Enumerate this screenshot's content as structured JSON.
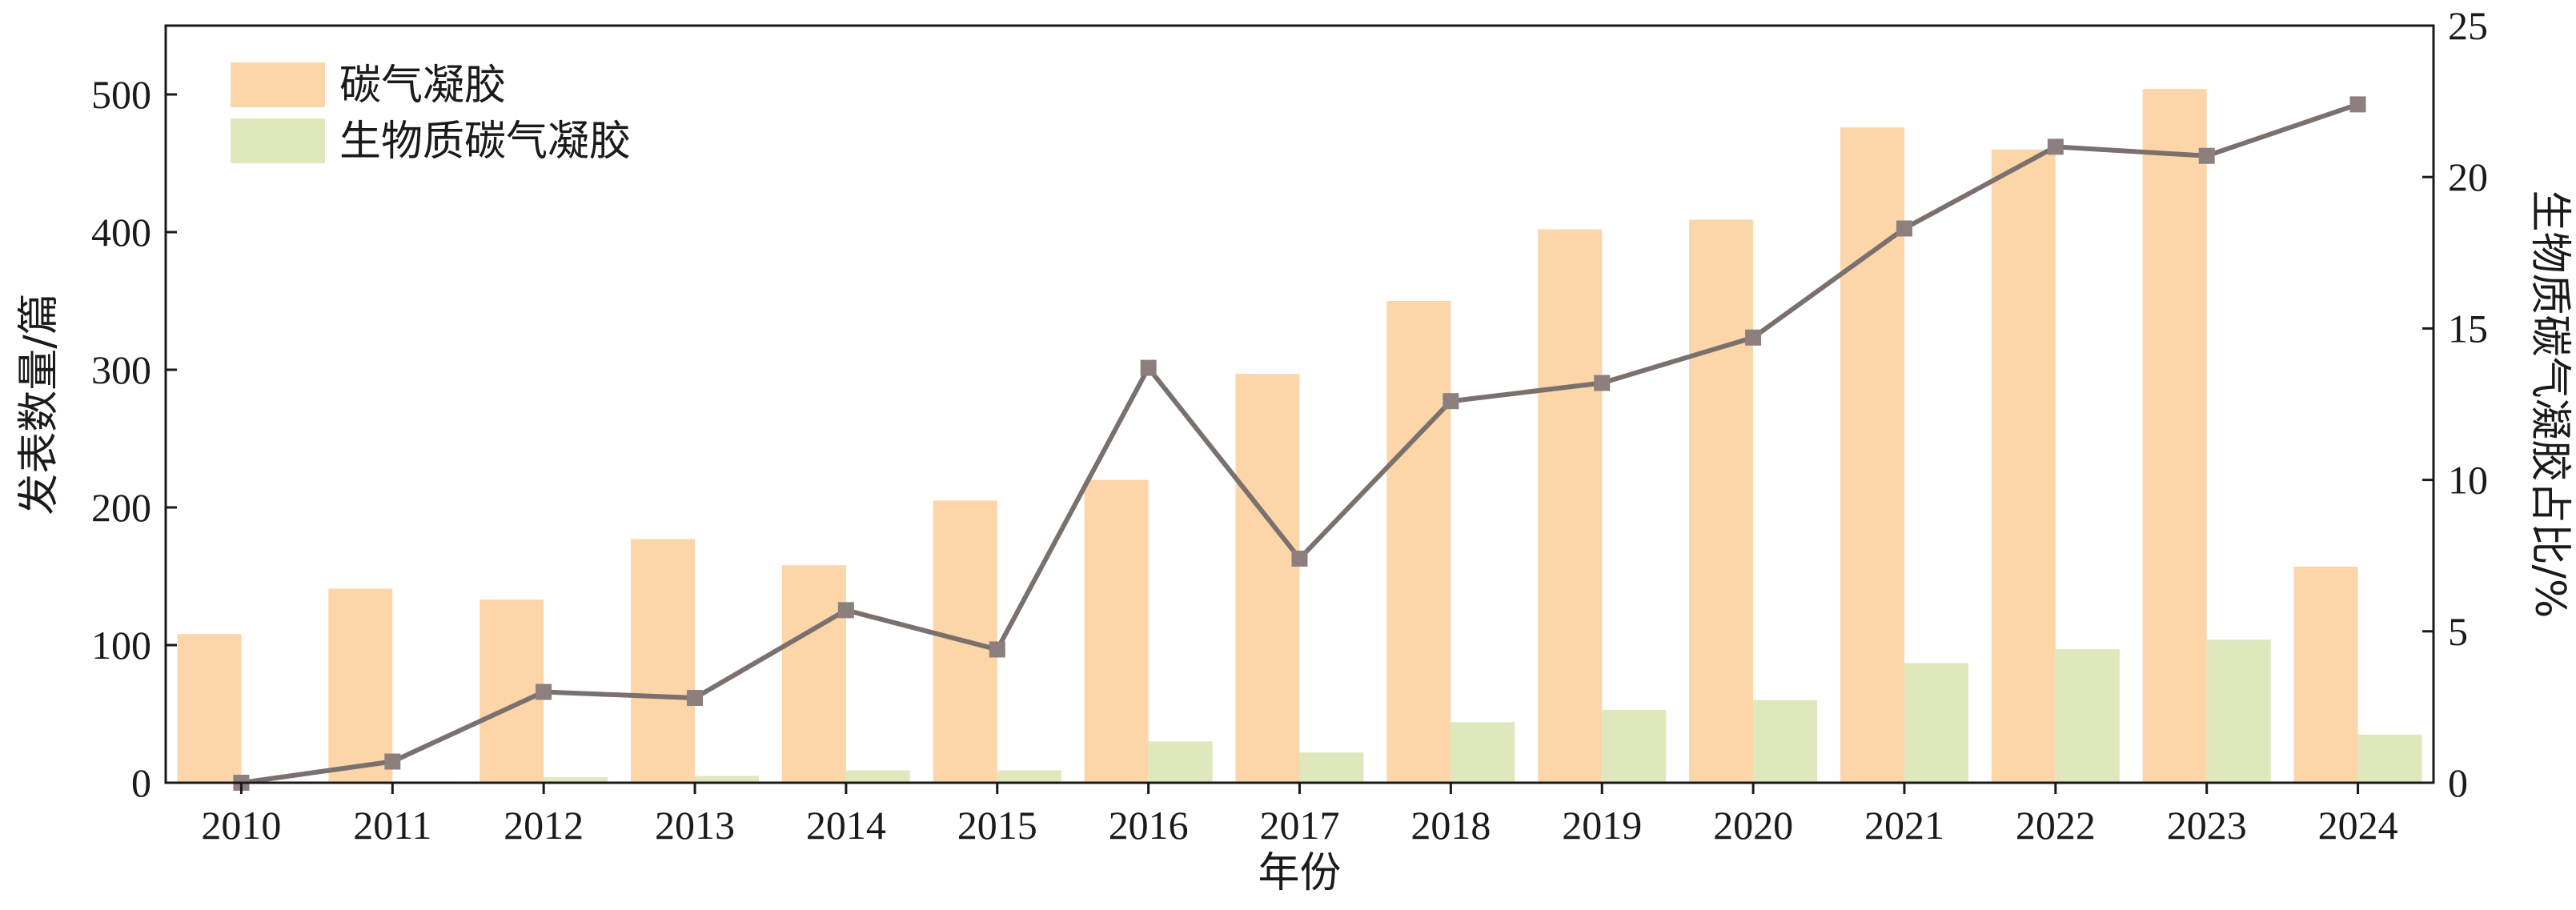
{
  "chart_data": {
    "type": "bar",
    "x_categories": [
      "2010",
      "2011",
      "2012",
      "2013",
      "2014",
      "2015",
      "2016",
      "2017",
      "2018",
      "2019",
      "2020",
      "2021",
      "2022",
      "2023",
      "2024"
    ],
    "xlabel": "年份",
    "ylabel_left": "发表数量/篇",
    "ylabel_right": "生物质碳气凝胶占比/%",
    "ylim_left": [
      0,
      550
    ],
    "ylim_right": [
      0,
      25
    ],
    "yticks_left": [
      "0",
      "100",
      "200",
      "300",
      "400",
      "500"
    ],
    "yticks_right": [
      "0",
      "5",
      "10",
      "15",
      "20",
      "25"
    ],
    "grid": false,
    "legend_position": "top-left",
    "series": [
      {
        "name": "碳气凝胶",
        "kind": "bar",
        "axis": "left",
        "color": "#fcd5a8",
        "values": [
          108,
          141,
          133,
          177,
          158,
          205,
          220,
          297,
          350,
          402,
          409,
          476,
          460,
          504,
          157
        ]
      },
      {
        "name": "生物质碳气凝胶",
        "kind": "bar",
        "axis": "left",
        "color": "#dfe8bd",
        "values": [
          0,
          1,
          4,
          5,
          9,
          9,
          30,
          22,
          44,
          53,
          60,
          87,
          97,
          104,
          35
        ]
      },
      {
        "name": "",
        "kind": "line",
        "axis": "right",
        "color": "#7a706e",
        "marker_color": "#8c7f7d",
        "values": [
          0,
          0.7,
          3.0,
          2.8,
          5.7,
          4.4,
          13.7,
          7.4,
          12.6,
          13.2,
          14.7,
          18.3,
          21.0,
          20.7,
          22.4
        ]
      }
    ]
  }
}
